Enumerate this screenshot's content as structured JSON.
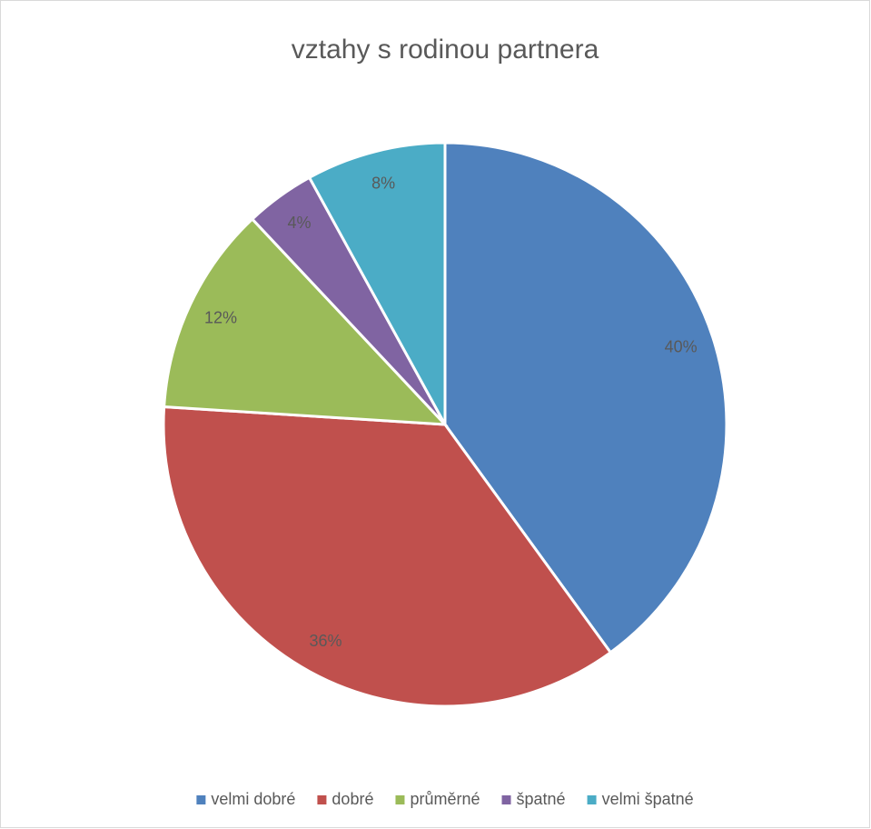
{
  "chart_data": {
    "type": "pie",
    "title": "vztahy s rodinou partnera",
    "categories": [
      "velmi dobré",
      "dobré",
      "průměrné",
      "špatné",
      "velmi špatné"
    ],
    "values": [
      40,
      36,
      12,
      4,
      8
    ],
    "value_labels": [
      "40%",
      "36%",
      "12%",
      "4%",
      "8%"
    ],
    "colors": [
      "#4f81bd",
      "#c0504d",
      "#9bbb59",
      "#8064a2",
      "#4bacc6"
    ],
    "legend": "bottom"
  }
}
